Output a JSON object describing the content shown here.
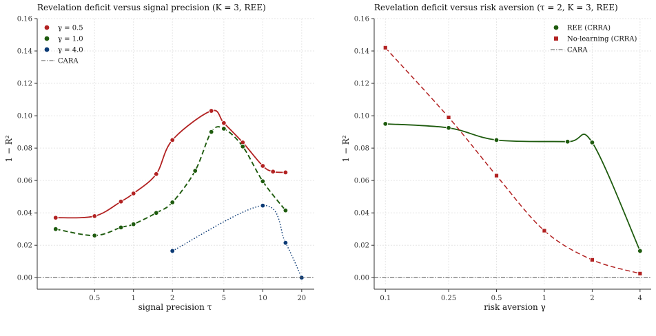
{
  "chart_data": [
    {
      "type": "line",
      "title": "Revelation deficit versus signal precision  (K = 3, REE)",
      "xlabel": "signal precision τ",
      "ylabel": "1 − R²",
      "xscale": "log",
      "xlim": [
        0.18,
        25
      ],
      "ylim": [
        -0.005,
        0.16
      ],
      "xticks": [
        0.5,
        1,
        2,
        5,
        10,
        20
      ],
      "xtick_labels": [
        "0.5",
        "1",
        "2",
        "5",
        "10",
        "20"
      ],
      "yticks": [
        0.0,
        0.02,
        0.04,
        0.06,
        0.08,
        0.1,
        0.12,
        0.14,
        0.16
      ],
      "ytick_labels": [
        "0.00",
        "0.02",
        "0.04",
        "0.06",
        "0.08",
        "0.10",
        "0.12",
        "0.14",
        "0.16"
      ],
      "grid": true,
      "legend_position": "top-left",
      "series": [
        {
          "name": "γ = 0.5",
          "color": "#b22222",
          "dash": "solid",
          "marker": "circle",
          "x": [
            0.25,
            0.5,
            0.8,
            1.0,
            1.5,
            2.0,
            4.0,
            5.0,
            7.0,
            10.0,
            12.0,
            15.0
          ],
          "y": [
            0.037,
            0.038,
            0.047,
            0.052,
            0.064,
            0.085,
            0.103,
            0.0955,
            0.0835,
            0.069,
            0.0655,
            0.065
          ]
        },
        {
          "name": "γ = 1.0",
          "color": "#1e5b0e",
          "dash": "dashed",
          "marker": "circle",
          "x": [
            0.25,
            0.5,
            0.8,
            1.0,
            1.5,
            2.0,
            3.0,
            4.0,
            5.0,
            7.0,
            10.0,
            15.0
          ],
          "y": [
            0.03,
            0.026,
            0.031,
            0.033,
            0.04,
            0.0465,
            0.066,
            0.09,
            0.092,
            0.081,
            0.0595,
            0.0415
          ]
        },
        {
          "name": "γ = 4.0",
          "color": "#0b3a75",
          "dash": "dotted",
          "marker": "circle",
          "x": [
            2.0,
            10.0,
            15.0,
            20.0
          ],
          "y": [
            0.0165,
            0.0445,
            0.0215,
            0.0
          ]
        },
        {
          "name": "CARA",
          "color": "#555555",
          "dash": "dashdot",
          "marker": "none",
          "x": [
            0.18,
            25
          ],
          "y": [
            0.0,
            0.0
          ]
        }
      ]
    },
    {
      "type": "line",
      "title": "Revelation deficit versus risk aversion  (τ = 2, K = 3, REE)",
      "xlabel": "risk aversion γ",
      "ylabel": "1 − R²",
      "xscale": "log",
      "xlim": [
        0.085,
        4.7
      ],
      "ylim": [
        -0.005,
        0.16
      ],
      "xticks": [
        0.1,
        0.25,
        0.5,
        1,
        2,
        4
      ],
      "xtick_labels": [
        "0.1",
        "0.25",
        "0.5",
        "1",
        "2",
        "4"
      ],
      "yticks": [
        0.0,
        0.02,
        0.04,
        0.06,
        0.08,
        0.1,
        0.12,
        0.14,
        0.16
      ],
      "ytick_labels": [
        "0.00",
        "0.02",
        "0.04",
        "0.06",
        "0.08",
        "0.10",
        "0.12",
        "0.14",
        "0.16"
      ],
      "grid": true,
      "legend_position": "top-right",
      "series": [
        {
          "name": "REE (CRRA)",
          "color": "#1e5b0e",
          "dash": "solid",
          "marker": "circle",
          "x": [
            0.1,
            0.25,
            0.5,
            1.4,
            2.0,
            4.0
          ],
          "y": [
            0.095,
            0.0925,
            0.085,
            0.084,
            0.0835,
            0.0165
          ]
        },
        {
          "name": "No-learning (CRRA)",
          "color": "#b22222",
          "dash": "dashed",
          "marker": "square",
          "x": [
            0.1,
            0.25,
            0.5,
            1.0,
            2.0,
            4.0
          ],
          "y": [
            0.142,
            0.099,
            0.063,
            0.029,
            0.011,
            0.0025
          ]
        },
        {
          "name": "CARA",
          "color": "#555555",
          "dash": "dashdot",
          "marker": "none",
          "x": [
            0.085,
            4.7
          ],
          "y": [
            0.0,
            0.0
          ]
        }
      ]
    }
  ]
}
